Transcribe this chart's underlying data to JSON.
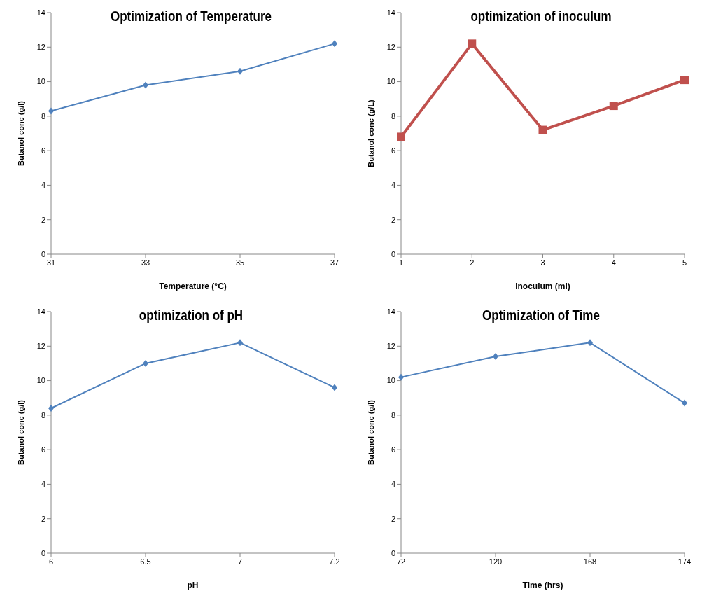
{
  "chart_data": [
    {
      "type": "line",
      "title": "Optimization of Temperature",
      "xlabel": "Temperature (°C)",
      "ylabel": "Butanol conc (g/l)",
      "categories": [
        "31",
        "33",
        "35",
        "37"
      ],
      "series": [
        {
          "color": "#4f81bd",
          "values": [
            8.3,
            9.8,
            10.6,
            12.2
          ]
        }
      ],
      "ylim": [
        0,
        14
      ],
      "yticks": [
        0,
        2,
        4,
        6,
        8,
        10,
        12,
        14
      ],
      "marker": "diamond"
    },
    {
      "type": "line",
      "title": "optimization of inoculum",
      "xlabel": "Inoculum (ml)",
      "ylabel": "Butanol conc  (g/L)",
      "categories": [
        "1",
        "2",
        "3",
        "4",
        "5"
      ],
      "series": [
        {
          "color": "#c0504d",
          "values": [
            6.8,
            12.2,
            7.2,
            8.6,
            10.1
          ]
        }
      ],
      "ylim": [
        0,
        14
      ],
      "yticks": [
        0,
        2,
        4,
        6,
        8,
        10,
        12,
        14
      ],
      "marker": "square"
    },
    {
      "type": "line",
      "title": "optimization of pH",
      "xlabel": "pH",
      "ylabel": "Butanol conc (g/l)",
      "categories": [
        "6",
        "6.5",
        "7",
        "7.2"
      ],
      "series": [
        {
          "color": "#4f81bd",
          "values": [
            8.4,
            11.0,
            12.2,
            9.6
          ]
        }
      ],
      "ylim": [
        0,
        14
      ],
      "yticks": [
        0,
        2,
        4,
        6,
        8,
        10,
        12,
        14
      ],
      "marker": "diamond"
    },
    {
      "type": "line",
      "title": "Optimization of Time",
      "xlabel": "Time (hrs)",
      "ylabel": "Butanol conc (g/l)",
      "categories": [
        "72",
        "120",
        "168",
        "174"
      ],
      "series": [
        {
          "color": "#4f81bd",
          "values": [
            10.2,
            11.4,
            12.2,
            8.7
          ]
        }
      ],
      "ylim": [
        0,
        14
      ],
      "yticks": [
        0,
        2,
        4,
        6,
        8,
        10,
        12,
        14
      ],
      "marker": "diamond"
    }
  ]
}
